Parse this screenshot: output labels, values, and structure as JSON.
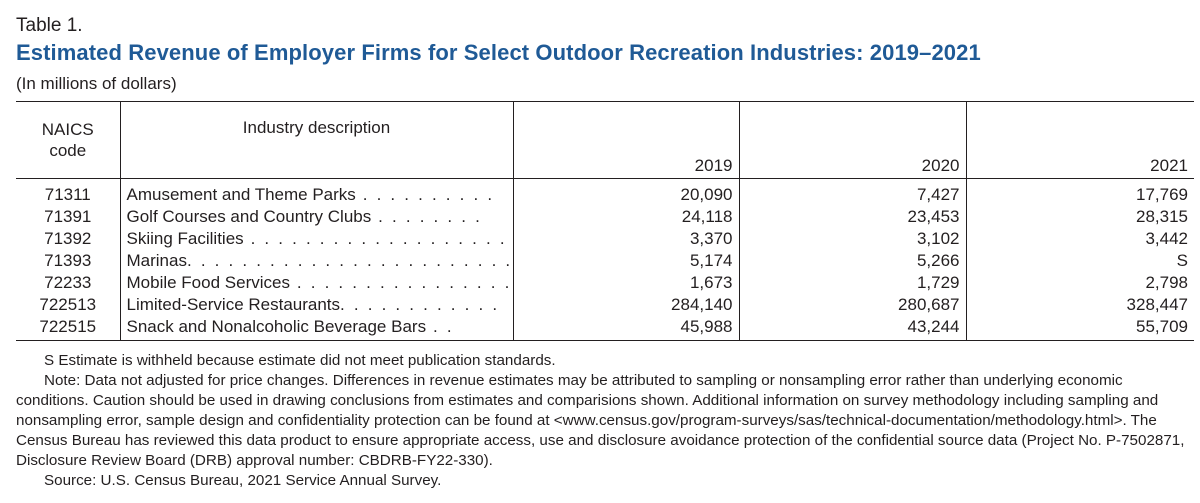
{
  "table_label": "Table 1.",
  "title": "Estimated Revenue of Employer Firms for Select Outdoor Recreation Industries: 2019–2021",
  "units": "(In millions of dollars)",
  "headers": {
    "code_line1": "NAICS",
    "code_line2": "code",
    "description": "Industry description",
    "y2019": "2019",
    "y2020": "2020",
    "y2021": "2021"
  },
  "rows": [
    {
      "code": "71311",
      "description": "Amusement and Theme Parks",
      "leader": " . . . . . . . . . .",
      "v2019": "20,090",
      "v2020": "7,427",
      "v2021": "17,769"
    },
    {
      "code": "71391",
      "description": "Golf Courses and Country Clubs",
      "leader": " . . . . . . . .",
      "v2019": "24,118",
      "v2020": "23,453",
      "v2021": "28,315"
    },
    {
      "code": "71392",
      "description": "Skiing Facilities",
      "leader": " . . . . . . . . . . . . . . . . . . . . . . . .",
      "v2019": "3,370",
      "v2020": "3,102",
      "v2021": "3,442"
    },
    {
      "code": "71393",
      "description": "Marinas",
      "leader": ". . . . . . . . . . . . . . . . . . . . . . . . . . . . . .",
      "v2019": "5,174",
      "v2020": "5,266",
      "v2021": "S"
    },
    {
      "code": "72233",
      "description": "Mobile Food Services",
      "leader": " . . . . . . . . . . . . . . . . . . .",
      "v2019": "1,673",
      "v2020": "1,729",
      "v2021": "2,798"
    },
    {
      "code": "722513",
      "description": "Limited-Service Restaurants",
      "leader": ". . . . . . . . . . . .",
      "v2019": "284,140",
      "v2020": "280,687",
      "v2021": "328,447"
    },
    {
      "code": "722515",
      "description": "Snack and Nonalcoholic Beverage Bars",
      "leader": " . .",
      "v2019": "45,988",
      "v2020": "43,244",
      "v2021": "55,709"
    }
  ],
  "notes": {
    "s_note": "S Estimate is withheld because estimate did not meet publication standards.",
    "note": "Note: Data not adjusted for price changes. Differences in revenue estimates may be attributed to sampling or nonsampling error rather than underlying economic conditions. Caution should be used in drawing conclusions from estimates and comparisions shown. Additional information on survey methodology including sampling and nonsampling error, sample design and confidentiality protection can be found at <www.census.gov/program-surveys/sas/technical-documentation/methodology.html>. The Census Bureau has reviewed this data product to ensure appropriate access, use and disclosure avoidance protection of the confidential source data (Project No. P-7502871, Disclosure Review Board (DRB) approval number: CBDRB-FY22-330).",
    "source": "Source: U.S. Census Bureau, 2021 Service Annual Survey."
  },
  "colors": {
    "title": "#1f5a96",
    "text": "#231f20",
    "rule": "#231f20"
  }
}
